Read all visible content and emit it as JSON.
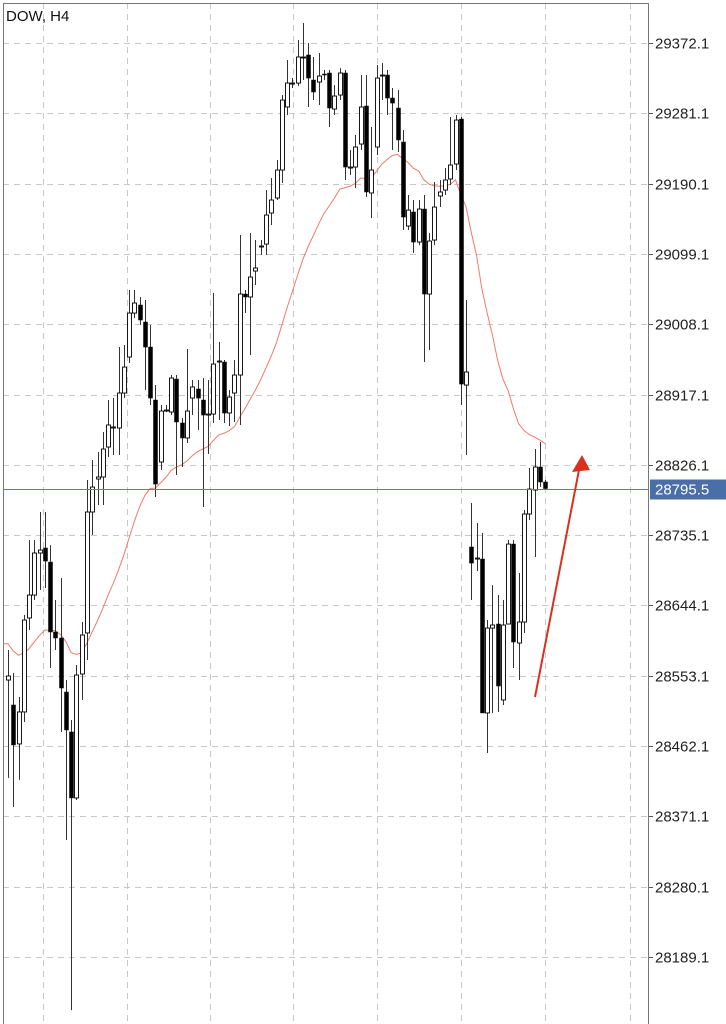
{
  "chart_data": {
    "type": "candlestick",
    "title": "DOW, H4",
    "symbol": "DOW",
    "timeframe": "H4",
    "ylim": [
      28102.4,
      29427.8
    ],
    "yticks": [
      "29372.1",
      "29281.1",
      "29190.1",
      "29099.1",
      "29008.1",
      "28917.1",
      "28826.1",
      "28735.1",
      "28644.1",
      "28553.1",
      "28462.1",
      "28371.1",
      "28280.1",
      "28189.1"
    ],
    "current_price": "28795.5",
    "grid": true,
    "colors": {
      "bull_body": "#ffffff",
      "bear_body": "#000000",
      "wick": "#111111",
      "grid": "#c8c8c8",
      "price_line": "#5b7fb5",
      "price_label_bg": "#4a6ea8",
      "moving_average": "#f07a6a",
      "arrow": "#d8321f"
    },
    "indicator": {
      "type": "moving average"
    },
    "annotation": {
      "type": "arrow",
      "direction": "up"
    },
    "ohlc_fields": [
      "open",
      "high",
      "low",
      "close"
    ],
    "candles": [
      [
        28547.6,
        28586.5,
        28420.9,
        28552.8
      ],
      [
        28515.3,
        28556.7,
        28383.2,
        28463.6
      ],
      [
        28464.9,
        28525.6,
        28418.3,
        28506.3
      ],
      [
        28506.3,
        28631.8,
        28493.3,
        28625.3
      ],
      [
        28627.9,
        28728.8,
        28612.3,
        28657.6
      ],
      [
        28657.6,
        28728.8,
        28651.2,
        28712.0
      ],
      [
        28712.0,
        28765.1,
        28664.1,
        28715.9
      ],
      [
        28718.5,
        28765.1,
        28666.7,
        28701.6
      ],
      [
        28700.3,
        28722.3,
        28563.2,
        28609.8
      ],
      [
        28609.8,
        28651.2,
        28586.5,
        28602.0
      ],
      [
        28602.0,
        28679.6,
        28480.4,
        28537.3
      ],
      [
        28532.1,
        28547.6,
        28340.5,
        28483.0
      ],
      [
        28480.4,
        28495.9,
        28120.4,
        28395.0
      ],
      [
        28395.0,
        28567.1,
        28392.4,
        28554.1
      ],
      [
        28555.4,
        28622.7,
        28521.8,
        28605.9
      ],
      [
        28608.5,
        28806.5,
        28573.5,
        28765.1
      ],
      [
        28765.1,
        28832.4,
        28735.3,
        28797.4
      ],
      [
        28807.8,
        28842.7,
        28774.1,
        28810.4
      ],
      [
        28810.4,
        28868.6,
        28774.1,
        28846.6
      ],
      [
        28849.2,
        28910.0,
        28836.3,
        28877.7
      ],
      [
        28873.8,
        28912.6,
        28838.8,
        28875.1
      ],
      [
        28873.8,
        28978.6,
        28838.8,
        28919.1
      ],
      [
        28919.1,
        28981.2,
        28912.6,
        28952.7
      ],
      [
        28965.7,
        29052.4,
        28957.9,
        29022.6
      ],
      [
        29022.6,
        29052.4,
        29016.2,
        29035.6
      ],
      [
        29033.0,
        29043.4,
        29007.1,
        29013.6
      ],
      [
        29011.0,
        29039.5,
        28923.0,
        28978.6
      ],
      [
        28978.6,
        29007.1,
        28903.6,
        28912.6
      ],
      [
        28910.0,
        28929.4,
        28784.5,
        28801.3
      ],
      [
        28829.8,
        28903.6,
        28819.4,
        28895.8
      ],
      [
        28895.8,
        28903.6,
        28894.5,
        28897.1
      ],
      [
        28894.5,
        28942.4,
        28890.6,
        28938.5
      ],
      [
        28937.2,
        28942.4,
        28813.0,
        28881.6
      ],
      [
        28880.3,
        28886.7,
        28823.3,
        28860.9
      ],
      [
        28860.9,
        28976.0,
        28854.4,
        28895.8
      ],
      [
        28912.6,
        28935.9,
        28890.6,
        28926.9
      ],
      [
        28924.3,
        28935.9,
        28871.2,
        28912.6
      ],
      [
        28910.0,
        28938.5,
        28771.5,
        28890.6
      ],
      [
        28890.6,
        28935.9,
        28840.1,
        28891.9
      ],
      [
        28891.9,
        29048.5,
        28880.3,
        28956.6
      ],
      [
        28959.2,
        28985.1,
        28884.1,
        28960.5
      ],
      [
        28959.2,
        28961.8,
        28880.3,
        28893.2
      ],
      [
        28893.2,
        28923.0,
        28876.4,
        28913.9
      ],
      [
        28919.1,
        28961.8,
        28881.6,
        28942.4
      ],
      [
        28942.4,
        29123.6,
        28877.7,
        29047.2
      ],
      [
        29047.2,
        29052.4,
        29022.6,
        29043.4
      ],
      [
        29043.4,
        29126.2,
        28968.3,
        29069.2
      ],
      [
        29077.0,
        29117.1,
        29058.9,
        29080.9
      ],
      [
        29108.1,
        29117.1,
        29097.7,
        29109.4
      ],
      [
        29111.9,
        29181.8,
        29097.7,
        29149.5
      ],
      [
        29152.1,
        29197.4,
        29136.5,
        29168.9
      ],
      [
        29171.5,
        29220.7,
        29168.9,
        29207.7
      ],
      [
        29207.7,
        29304.8,
        29190.9,
        29298.3
      ],
      [
        29289.3,
        29350.1,
        29278.9,
        29320.3
      ],
      [
        29319.0,
        29326.8,
        29313.9,
        29320.3
      ],
      [
        29320.3,
        29376.0,
        29316.4,
        29354.0
      ],
      [
        29352.7,
        29398.0,
        29324.2,
        29354.0
      ],
      [
        29356.6,
        29372.1,
        29289.3,
        29326.8
      ],
      [
        29324.2,
        29354.0,
        29298.3,
        29308.7
      ],
      [
        29321.6,
        29359.2,
        29291.9,
        29329.4
      ],
      [
        29332.0,
        29337.2,
        29324.2,
        29330.7
      ],
      [
        29333.3,
        29337.2,
        29263.4,
        29288.0
      ],
      [
        29286.7,
        29317.7,
        29278.9,
        29303.5
      ],
      [
        29304.8,
        29339.7,
        29298.3,
        29333.3
      ],
      [
        29333.3,
        29337.2,
        29194.8,
        29211.6
      ],
      [
        29210.3,
        29233.6,
        29201.3,
        29211.6
      ],
      [
        29211.6,
        29253.0,
        29184.4,
        29237.5
      ],
      [
        29241.4,
        29330.7,
        29233.6,
        29289.3
      ],
      [
        29290.6,
        29330.7,
        29172.8,
        29179.3
      ],
      [
        29178.0,
        29263.4,
        29145.6,
        29207.7
      ],
      [
        29237.5,
        29343.6,
        29227.1,
        29326.8
      ],
      [
        29329.4,
        29346.2,
        29298.3,
        29330.7
      ],
      [
        29330.7,
        29337.2,
        29278.9,
        29300.9
      ],
      [
        29300.9,
        29313.9,
        29233.6,
        29294.4
      ],
      [
        29288.0,
        29311.3,
        29231.0,
        29246.6
      ],
      [
        29244.0,
        29259.5,
        29130.1,
        29146.9
      ],
      [
        29135.2,
        29175.4,
        29130.1,
        29155.9
      ],
      [
        29153.4,
        29168.9,
        29100.3,
        29114.5
      ],
      [
        29114.5,
        29168.9,
        29110.6,
        29157.2
      ],
      [
        29157.2,
        29175.4,
        28959.2,
        29047.2
      ],
      [
        29047.2,
        29126.2,
        28974.7,
        29115.8
      ],
      [
        29117.1,
        29192.2,
        29110.6,
        29159.8
      ],
      [
        29174.1,
        29194.8,
        29159.8,
        29179.3
      ],
      [
        29181.8,
        29210.3,
        29175.4,
        29194.8
      ],
      [
        29196.1,
        29276.3,
        29188.3,
        29214.2
      ],
      [
        29215.5,
        29278.9,
        29207.7,
        29272.4
      ],
      [
        29273.7,
        29276.3,
        28903.6,
        28930.7
      ],
      [
        28929.4,
        29039.5,
        28838.8,
        28946.3
      ],
      [
        28719.8,
        28776.7,
        28651.2,
        28699.0
      ],
      [
        28704.2,
        28750.8,
        28688.7,
        28705.5
      ],
      [
        28704.2,
        28737.9,
        28505.0,
        28505.0
      ],
      [
        28505.0,
        28625.3,
        28453.2,
        28614.9
      ],
      [
        28614.9,
        28670.5,
        28505.0,
        28618.8
      ],
      [
        28620.1,
        28657.6,
        28506.3,
        28539.9
      ],
      [
        28521.8,
        28651.2,
        28515.3,
        28618.8
      ],
      [
        28620.1,
        28728.8,
        28620.1,
        28723.6
      ],
      [
        28723.6,
        28728.8,
        28563.2,
        28596.8
      ],
      [
        28595.5,
        28686.1,
        28547.6,
        28622.7
      ],
      [
        28622.7,
        28767.7,
        28608.5,
        28762.5
      ],
      [
        28762.5,
        28822.0,
        28754.7,
        28794.8
      ],
      [
        28793.5,
        28846.6,
        28706.8,
        28823.3
      ],
      [
        28823.3,
        28855.7,
        28797.4,
        28803.9
      ],
      [
        28803.9,
        28806.5,
        28793.5,
        28795.5
      ]
    ]
  }
}
